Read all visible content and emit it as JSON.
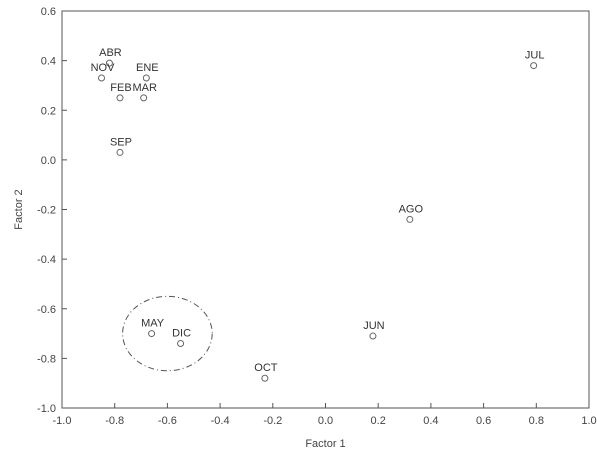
{
  "chart_data": {
    "type": "scatter",
    "xlabel": "Factor 1",
    "ylabel": "Factor 2",
    "xlim": [
      -1.0,
      1.0
    ],
    "ylim": [
      -1.0,
      0.6
    ],
    "xticks": [
      -1.0,
      -0.8,
      -0.6,
      -0.4,
      -0.2,
      0.0,
      0.2,
      0.4,
      0.6,
      0.8,
      1.0
    ],
    "yticks": [
      -1.0,
      -0.8,
      -0.6,
      -0.4,
      -0.2,
      0.0,
      0.2,
      0.4,
      0.6
    ],
    "xtick_labels": [
      "-1.0",
      "-0.8",
      "-0.6",
      "-0.4",
      "-0.2",
      "0.0",
      "0.2",
      "0.4",
      "0.6",
      "0.8",
      "1.0"
    ],
    "ytick_labels": [
      "-1.0",
      "-0.8",
      "-0.6",
      "-0.4",
      "-0.2",
      "0.0",
      "0.2",
      "0.4",
      "0.6"
    ],
    "grid": false,
    "points": [
      {
        "label": "ABR",
        "x": -0.82,
        "y": 0.39
      },
      {
        "label": "NOV",
        "x": -0.85,
        "y": 0.33
      },
      {
        "label": "ENE",
        "x": -0.68,
        "y": 0.33
      },
      {
        "label": "FEB",
        "x": -0.78,
        "y": 0.25
      },
      {
        "label": "MAR",
        "x": -0.69,
        "y": 0.25
      },
      {
        "label": "SEP",
        "x": -0.78,
        "y": 0.03
      },
      {
        "label": "JUL",
        "x": 0.79,
        "y": 0.38
      },
      {
        "label": "AGO",
        "x": 0.32,
        "y": -0.24
      },
      {
        "label": "MAY",
        "x": -0.66,
        "y": -0.7
      },
      {
        "label": "DIC",
        "x": -0.55,
        "y": -0.74
      },
      {
        "label": "JUN",
        "x": 0.18,
        "y": -0.71
      },
      {
        "label": "OCT",
        "x": -0.23,
        "y": -0.88
      }
    ],
    "annotations": [
      {
        "type": "dashed-ellipse",
        "encloses": [
          "MAY",
          "DIC"
        ],
        "center_x": -0.6,
        "center_y": -0.7,
        "radius_x": 0.17,
        "radius_y": 0.15
      }
    ]
  }
}
